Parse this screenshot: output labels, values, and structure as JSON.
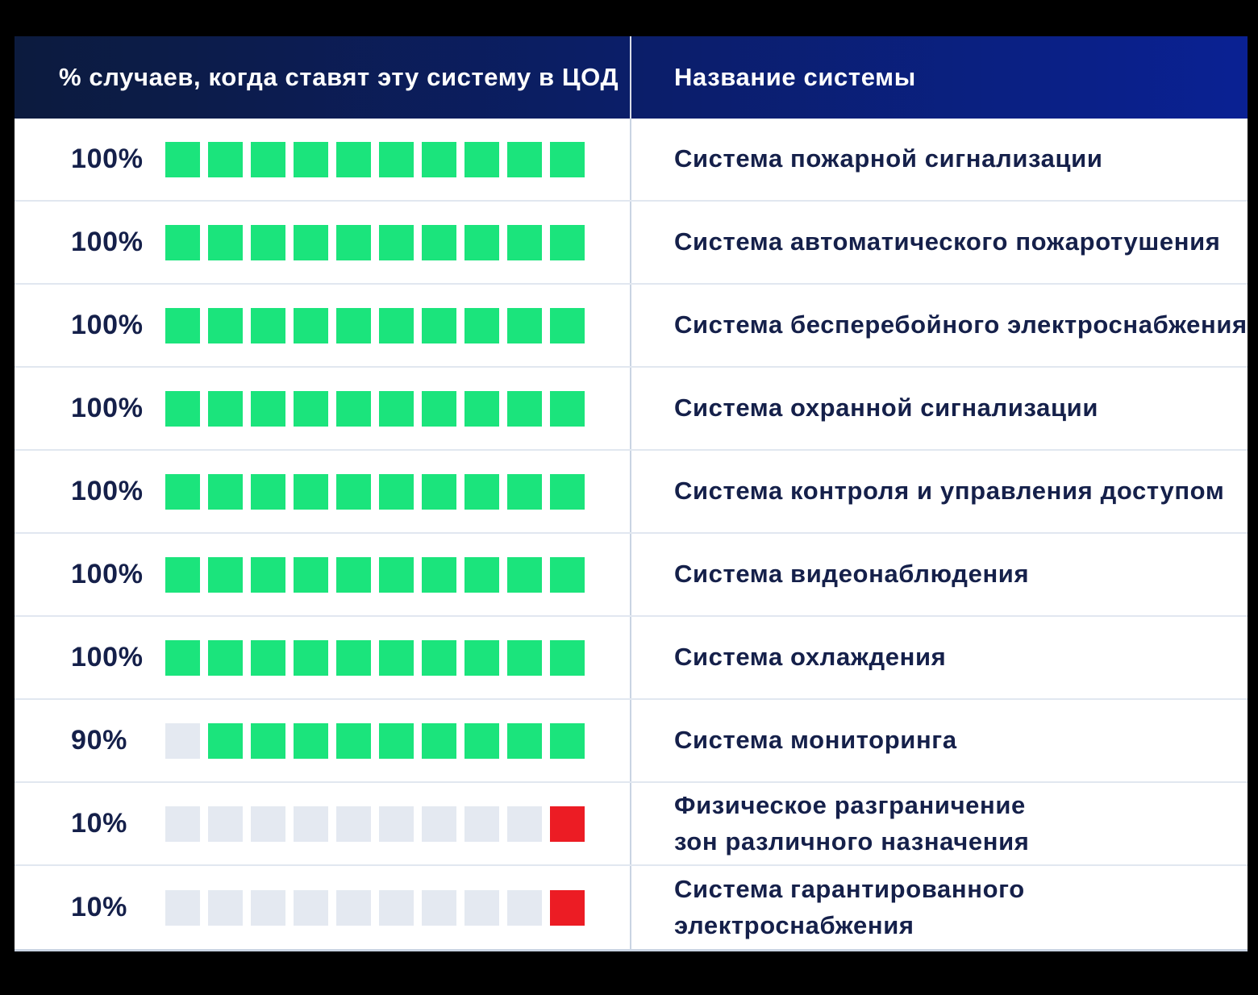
{
  "header": {
    "percent_column": "% случаев, когда ставят эту систему в ЦОД",
    "name_column": "Название системы"
  },
  "rows": [
    {
      "percent": "100%",
      "name": "Система пожарной сигнализации",
      "blocks": [
        "green",
        "green",
        "green",
        "green",
        "green",
        "green",
        "green",
        "green",
        "green",
        "green"
      ]
    },
    {
      "percent": "100%",
      "name": "Система автоматического пожаротушения",
      "blocks": [
        "green",
        "green",
        "green",
        "green",
        "green",
        "green",
        "green",
        "green",
        "green",
        "green"
      ]
    },
    {
      "percent": "100%",
      "name": "Система бесперебойного электроснабжения",
      "blocks": [
        "green",
        "green",
        "green",
        "green",
        "green",
        "green",
        "green",
        "green",
        "green",
        "green"
      ]
    },
    {
      "percent": "100%",
      "name": "Система охранной сигнализации",
      "blocks": [
        "green",
        "green",
        "green",
        "green",
        "green",
        "green",
        "green",
        "green",
        "green",
        "green"
      ]
    },
    {
      "percent": "100%",
      "name": "Система контроля и управления доступом",
      "blocks": [
        "green",
        "green",
        "green",
        "green",
        "green",
        "green",
        "green",
        "green",
        "green",
        "green"
      ]
    },
    {
      "percent": "100%",
      "name": "Система видеонаблюдения",
      "blocks": [
        "green",
        "green",
        "green",
        "green",
        "green",
        "green",
        "green",
        "green",
        "green",
        "green"
      ]
    },
    {
      "percent": "100%",
      "name": "Система охлаждения",
      "blocks": [
        "green",
        "green",
        "green",
        "green",
        "green",
        "green",
        "green",
        "green",
        "green",
        "green"
      ]
    },
    {
      "percent": "90%",
      "name": "Система мониторинга",
      "blocks": [
        "gray",
        "green",
        "green",
        "green",
        "green",
        "green",
        "green",
        "green",
        "green",
        "green"
      ]
    },
    {
      "percent": "10%",
      "name": "Физическое разграничение\nзон различного назначения",
      "blocks": [
        "gray",
        "gray",
        "gray",
        "gray",
        "gray",
        "gray",
        "gray",
        "gray",
        "gray",
        "red"
      ]
    },
    {
      "percent": "10%",
      "name": "Система гарантированного\nэлектроснабжения",
      "blocks": [
        "gray",
        "gray",
        "gray",
        "gray",
        "gray",
        "gray",
        "gray",
        "gray",
        "gray",
        "red"
      ]
    }
  ],
  "colors": {
    "green_square": "#1BE47C",
    "gray_square": "#E4E9F1",
    "red_square": "#EC1C24",
    "header_gradient_start": "#0C1B3E",
    "header_gradient_end": "#0A2193",
    "text_navy": "#15204A",
    "outer_background": "#000000"
  },
  "chart_data": {
    "type": "bar",
    "variant": "unit-square waffle rows, 10 units per row, 1 unit = 10%",
    "title": "% случаев, когда ставят эту систему в ЦОД",
    "xlabel": "Название системы",
    "ylabel": "% случаев",
    "categories": [
      "Система пожарной сигнализации",
      "Система автоматического пожаротушения",
      "Система бесперебойного электроснабжения",
      "Система охранной сигнализации",
      "Система контроля и управления доступом",
      "Система видеонаблюдения",
      "Система охлаждения",
      "Система мониторинга",
      "Физическое разграничение зон различного назначения",
      "Система гарантированного электроснабжения"
    ],
    "values": [
      100,
      100,
      100,
      100,
      100,
      100,
      100,
      90,
      10,
      10
    ],
    "value_labels": [
      "100%",
      "100%",
      "100%",
      "100%",
      "100%",
      "100%",
      "100%",
      "90%",
      "10%",
      "10%"
    ],
    "ylim": [
      0,
      100
    ],
    "grid": false,
    "legend": false,
    "notes": "rows with 10% use a red unit square; unfilled units are light gray"
  }
}
